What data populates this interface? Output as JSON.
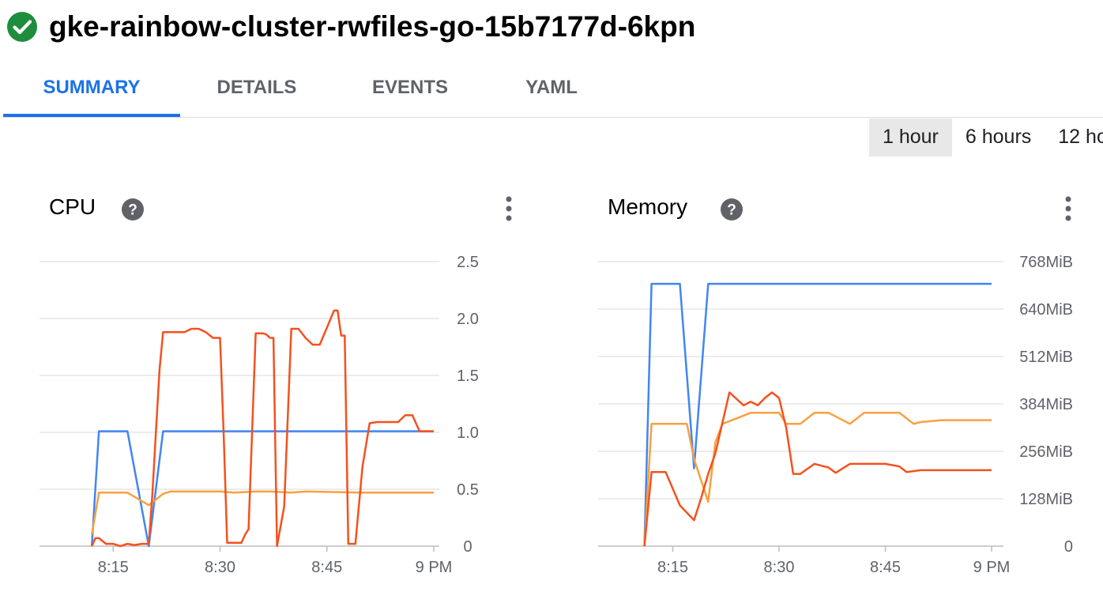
{
  "header": {
    "title": "gke-rainbow-cluster-rwfiles-go-15b7177d-6kpn",
    "status_icon": "check-circle-icon",
    "status_color": "#1e8e3e"
  },
  "tabs": [
    {
      "label": "SUMMARY",
      "active": true
    },
    {
      "label": "DETAILS",
      "active": false
    },
    {
      "label": "EVENTS",
      "active": false
    },
    {
      "label": "YAML",
      "active": false
    }
  ],
  "time_ranges": [
    {
      "label": "1 hour",
      "selected": true
    },
    {
      "label": "6 hours",
      "selected": false
    },
    {
      "label": "12 ho",
      "selected": false
    }
  ],
  "colors": {
    "blue": "#4285f4",
    "orange": "#f9a03f",
    "red": "#f4511e",
    "accent": "#1a73e8"
  },
  "panels": {
    "cpu": {
      "title": "CPU",
      "help_icon": "help-icon",
      "menu_icon": "more-vert-icon"
    },
    "memory": {
      "title": "Memory",
      "help_icon": "help-icon",
      "menu_icon": "more-vert-icon"
    }
  },
  "chart_data": [
    {
      "type": "line",
      "title": "CPU",
      "xlabel": "",
      "ylabel": "",
      "x_ticks": [
        {
          "label": "8:15",
          "value": 15
        },
        {
          "label": "8:30",
          "value": 30
        },
        {
          "label": "8:45",
          "value": 45
        },
        {
          "label": "9 PM",
          "value": 60
        }
      ],
      "y_ticks": [
        {
          "label": "0",
          "value": 0
        },
        {
          "label": "0.5",
          "value": 0.5
        },
        {
          "label": "1.0",
          "value": 1.0
        },
        {
          "label": "1.5",
          "value": 1.5
        },
        {
          "label": "2.0",
          "value": 2.0
        },
        {
          "label": "2.5",
          "value": 2.5
        }
      ],
      "xlim": [
        0,
        60
      ],
      "ylim": [
        0,
        2.5
      ],
      "grid": true,
      "series": [
        {
          "color": "#4285f4",
          "x": [
            12,
            13,
            15,
            17,
            20,
            22,
            30,
            40,
            50,
            60
          ],
          "y": [
            0.0,
            1.01,
            1.01,
            1.01,
            0.0,
            1.01,
            1.01,
            1.01,
            1.01,
            1.01
          ]
        },
        {
          "color": "#f9a03f",
          "x": [
            12,
            13,
            17,
            20,
            22,
            23,
            30,
            32,
            35,
            37,
            40,
            42,
            50,
            60
          ],
          "y": [
            0.1,
            0.47,
            0.47,
            0.36,
            0.46,
            0.48,
            0.48,
            0.47,
            0.48,
            0.48,
            0.47,
            0.48,
            0.47,
            0.47
          ]
        },
        {
          "color": "#f4511e",
          "x": [
            12,
            12.5,
            13,
            14,
            15,
            16,
            17,
            18,
            19,
            20,
            20.5,
            21,
            21.5,
            22,
            23,
            24,
            25,
            26,
            27,
            28,
            29,
            30,
            30.5,
            31,
            32,
            33,
            33.5,
            34,
            35,
            36,
            36.5,
            37,
            37.5,
            38,
            39,
            40,
            40.5,
            41,
            42,
            43,
            44,
            45,
            46,
            46.5,
            47,
            47.5,
            48,
            49,
            50,
            51,
            52,
            53,
            54,
            55,
            56,
            57,
            58,
            59,
            60
          ],
          "y": [
            0.0,
            0.07,
            0.07,
            0.02,
            0.02,
            0.0,
            0.02,
            0.01,
            0.02,
            0.02,
            0.45,
            1.0,
            1.55,
            1.88,
            1.88,
            1.88,
            1.88,
            1.91,
            1.91,
            1.88,
            1.83,
            1.83,
            1.0,
            0.03,
            0.03,
            0.03,
            0.1,
            0.15,
            1.87,
            1.87,
            1.86,
            1.83,
            1.83,
            0.0,
            0.35,
            1.91,
            1.91,
            1.91,
            1.83,
            1.77,
            1.77,
            1.92,
            2.07,
            2.07,
            1.85,
            1.85,
            0.02,
            0.02,
            0.7,
            1.08,
            1.09,
            1.09,
            1.09,
            1.09,
            1.15,
            1.15,
            1.01,
            1.01,
            1.01
          ]
        }
      ]
    },
    {
      "type": "line",
      "title": "Memory",
      "xlabel": "",
      "ylabel": "",
      "x_ticks": [
        {
          "label": "8:15",
          "value": 15
        },
        {
          "label": "8:30",
          "value": 30
        },
        {
          "label": "8:45",
          "value": 45
        },
        {
          "label": "9 PM",
          "value": 60
        }
      ],
      "y_ticks": [
        {
          "label": "0",
          "value": 0
        },
        {
          "label": "128MiB",
          "value": 128
        },
        {
          "label": "256MiB",
          "value": 256
        },
        {
          "label": "384MiB",
          "value": 384
        },
        {
          "label": "512MiB",
          "value": 512
        },
        {
          "label": "640MiB",
          "value": 640
        },
        {
          "label": "768MiB",
          "value": 768
        }
      ],
      "xlim": [
        0,
        60
      ],
      "ylim": [
        0,
        768
      ],
      "grid": true,
      "series": [
        {
          "color": "#4285f4",
          "x": [
            11,
            12,
            16,
            18,
            20,
            60
          ],
          "y": [
            0,
            708,
            708,
            210,
            708,
            708
          ]
        },
        {
          "color": "#f9a03f",
          "x": [
            11,
            12,
            16,
            17,
            18,
            20,
            21,
            22,
            26,
            28,
            30,
            31,
            33,
            35,
            37,
            40,
            42,
            44,
            47,
            49,
            50,
            53,
            60
          ],
          "y": [
            0,
            330,
            330,
            330,
            235,
            120,
            280,
            330,
            360,
            360,
            360,
            330,
            330,
            360,
            360,
            330,
            360,
            360,
            360,
            330,
            335,
            340,
            340
          ]
        },
        {
          "color": "#f4511e",
          "x": [
            11,
            12,
            14,
            16,
            18,
            19,
            20,
            21,
            23,
            25,
            26,
            27,
            28,
            29,
            30,
            31,
            32,
            33,
            35,
            37,
            38,
            40,
            42,
            45,
            47,
            48,
            50,
            60
          ],
          "y": [
            0,
            200,
            200,
            110,
            70,
            130,
            195,
            250,
            415,
            380,
            390,
            380,
            400,
            415,
            400,
            320,
            195,
            195,
            222,
            212,
            198,
            222,
            222,
            222,
            215,
            200,
            205,
            205
          ]
        }
      ]
    }
  ]
}
